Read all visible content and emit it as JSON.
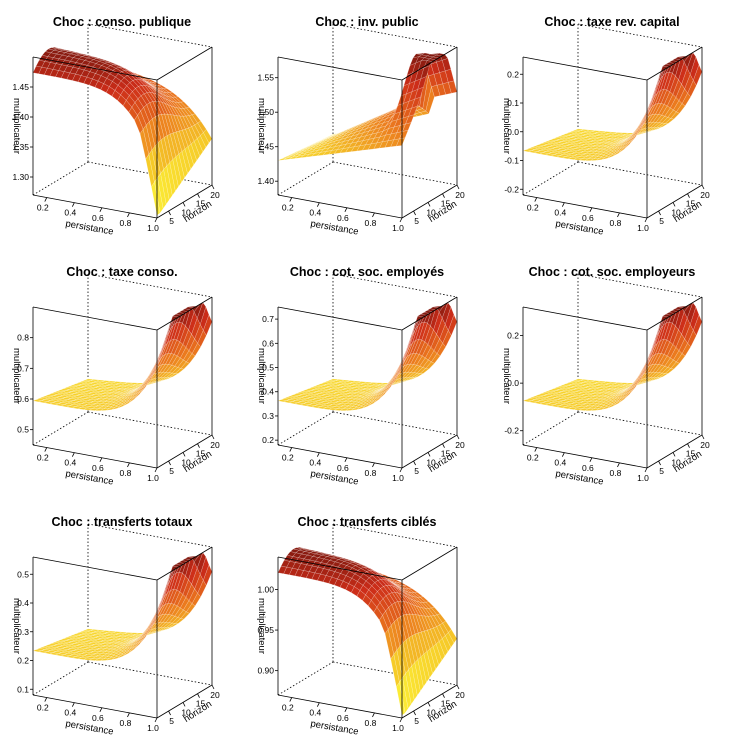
{
  "chart_data": [
    {
      "type": "surface",
      "title": "Choc : conso. publique",
      "xlabel": "persistance",
      "ylabel": "horizon",
      "zlabel": "multiplicateur",
      "xticks": [
        "0.2",
        "0.4",
        "0.6",
        "0.8",
        "1.0"
      ],
      "yticks": [
        "5",
        "10",
        "15",
        "20"
      ],
      "zticks": [
        "1.30",
        "1.35",
        "1.40",
        "1.45"
      ],
      "xlim": [
        0.1,
        1.0
      ],
      "ylim": [
        1,
        20
      ],
      "zlim": [
        1.27,
        1.5
      ],
      "shape": "plateau",
      "peak": 1.49
    },
    {
      "type": "surface",
      "title": "Choc : inv. public",
      "xlabel": "persistance",
      "ylabel": "horizon",
      "zlabel": "multiplicateur",
      "xticks": [
        "0.2",
        "0.4",
        "0.6",
        "0.8",
        "1.0"
      ],
      "yticks": [
        "5",
        "10",
        "15",
        "20"
      ],
      "zticks": [
        "1.40",
        "1.45",
        "1.50",
        "1.55"
      ],
      "xlim": [
        0.1,
        1.0
      ],
      "ylim": [
        1,
        20
      ],
      "zlim": [
        1.38,
        1.58
      ],
      "shape": "ridge",
      "peak": 1.57
    },
    {
      "type": "surface",
      "title": "Choc : taxe rev. capital",
      "xlabel": "persistance",
      "ylabel": "horizon",
      "zlabel": "multiplicateur",
      "xticks": [
        "0.2",
        "0.4",
        "0.6",
        "0.8",
        "1.0"
      ],
      "yticks": [
        "5",
        "10",
        "15",
        "20"
      ],
      "zticks": [
        "-0.2",
        "-0.1",
        "0.0",
        "0.1",
        "0.2"
      ],
      "xlim": [
        0.1,
        1.0
      ],
      "ylim": [
        1,
        20
      ],
      "zlim": [
        -0.22,
        0.26
      ],
      "shape": "rise",
      "peak": 0.25
    },
    {
      "type": "surface",
      "title": "Choc : taxe conso.",
      "xlabel": "persistance",
      "ylabel": "horizon",
      "zlabel": "multiplicateur",
      "xticks": [
        "0.2",
        "0.4",
        "0.6",
        "0.8",
        "1.0"
      ],
      "yticks": [
        "5",
        "10",
        "15",
        "20"
      ],
      "zticks": [
        "0.5",
        "0.6",
        "0.7",
        "0.8"
      ],
      "xlim": [
        0.1,
        1.0
      ],
      "ylim": [
        1,
        20
      ],
      "zlim": [
        0.45,
        0.9
      ],
      "shape": "rise",
      "peak": 0.88
    },
    {
      "type": "surface",
      "title": "Choc : cot. soc. employés",
      "xlabel": "persistance",
      "ylabel": "horizon",
      "zlabel": "multiplicateur",
      "xticks": [
        "0.2",
        "0.4",
        "0.6",
        "0.8",
        "1.0"
      ],
      "yticks": [
        "5",
        "10",
        "15",
        "20"
      ],
      "zticks": [
        "0.2",
        "0.3",
        "0.4",
        "0.5",
        "0.6",
        "0.7"
      ],
      "xlim": [
        0.1,
        1.0
      ],
      "ylim": [
        1,
        20
      ],
      "zlim": [
        0.18,
        0.75
      ],
      "shape": "rise",
      "peak": 0.73
    },
    {
      "type": "surface",
      "title": "Choc : cot. soc. employeurs",
      "xlabel": "persistance",
      "ylabel": "horizon",
      "zlabel": "multiplicateur",
      "xticks": [
        "0.2",
        "0.4",
        "0.6",
        "0.8",
        "1.0"
      ],
      "yticks": [
        "5",
        "10",
        "15",
        "20"
      ],
      "zticks": [
        "-0.2",
        "0.0",
        "0.2"
      ],
      "xlim": [
        0.1,
        1.0
      ],
      "ylim": [
        1,
        20
      ],
      "zlim": [
        -0.26,
        0.32
      ],
      "shape": "rise",
      "peak": 0.3
    },
    {
      "type": "surface",
      "title": "Choc : transferts totaux",
      "xlabel": "persistance",
      "ylabel": "horizon",
      "zlabel": "multiplicateur",
      "xticks": [
        "0.2",
        "0.4",
        "0.6",
        "0.8",
        "1.0"
      ],
      "yticks": [
        "5",
        "10",
        "15",
        "20"
      ],
      "zticks": [
        "0.1",
        "0.2",
        "0.3",
        "0.4",
        "0.5"
      ],
      "xlim": [
        0.1,
        1.0
      ],
      "ylim": [
        1,
        20
      ],
      "zlim": [
        0.08,
        0.56
      ],
      "shape": "rise",
      "peak": 0.52
    },
    {
      "type": "surface",
      "title": "Choc : transferts ciblés",
      "xlabel": "persistance",
      "ylabel": "horizon",
      "zlabel": "multiplicateur",
      "xticks": [
        "0.2",
        "0.4",
        "0.6",
        "0.8",
        "1.0"
      ],
      "yticks": [
        "5",
        "10",
        "15",
        "20"
      ],
      "zticks": [
        "0.90",
        "0.95",
        "1.00"
      ],
      "xlim": [
        0.1,
        1.0
      ],
      "ylim": [
        1,
        20
      ],
      "zlim": [
        0.87,
        1.04
      ],
      "shape": "plateau",
      "peak": 1.03
    }
  ],
  "colors": {
    "low": "#ffff33",
    "mid": "#f5a623",
    "high": "#d42a1a",
    "deep": "#8a1a10"
  }
}
